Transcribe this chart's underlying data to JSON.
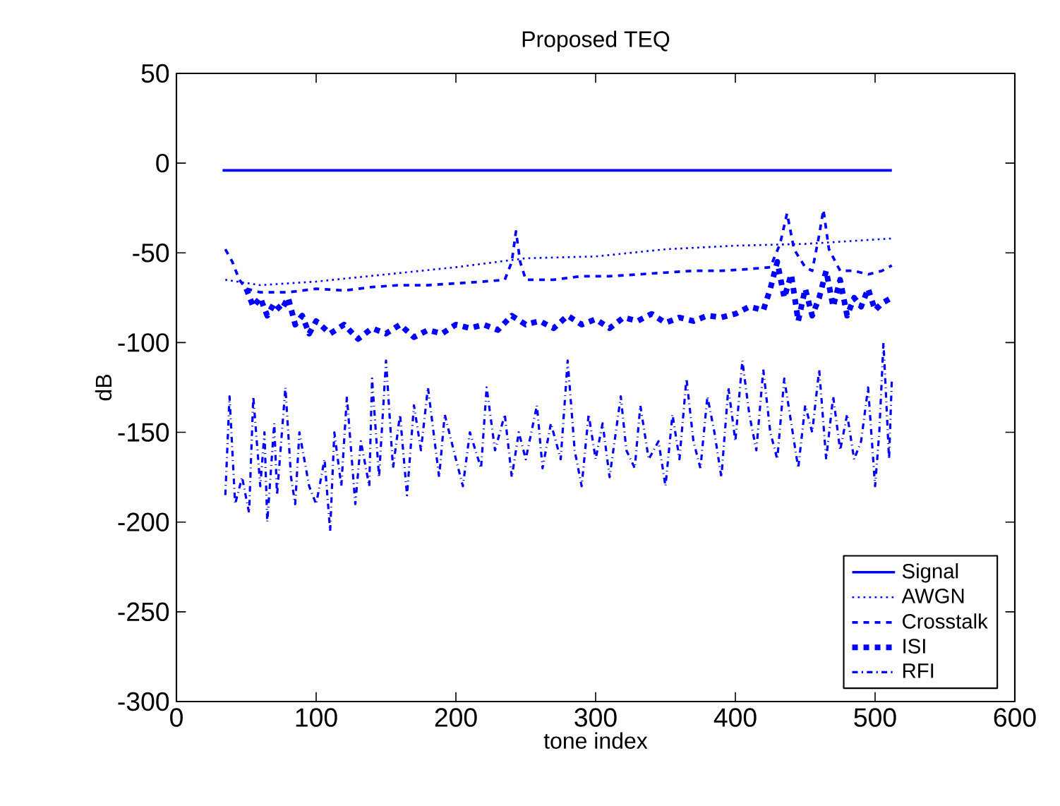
{
  "chart_data": {
    "type": "line",
    "title": "Proposed TEQ",
    "xlabel": "tone index",
    "ylabel": "dB",
    "xlim": [
      0,
      600
    ],
    "xticks": [
      0,
      100,
      200,
      300,
      400,
      500,
      600
    ],
    "ylim": [
      -300,
      50
    ],
    "yticks": [
      -300,
      -250,
      -200,
      -150,
      -100,
      -50,
      0,
      50
    ],
    "grid": false,
    "legend": "bottom right",
    "series": [
      {
        "name": "Signal",
        "color": "#0000ff",
        "line_style": "solid",
        "x": [
          33,
          512
        ],
        "values": [
          -4,
          -4
        ]
      },
      {
        "name": "AWGN",
        "color": "#0000ff",
        "line_style": "dotted",
        "x": [
          35,
          60,
          100,
          150,
          200,
          250,
          300,
          350,
          400,
          450,
          512
        ],
        "values": [
          -65,
          -68,
          -66,
          -62,
          -58,
          -53,
          -52,
          -48,
          -46,
          -45,
          -42
        ]
      },
      {
        "name": "Crosstalk",
        "color": "#0000ff",
        "line_style": "dashed",
        "x": [
          35,
          40,
          45,
          50,
          60,
          80,
          100,
          120,
          140,
          160,
          180,
          200,
          220,
          235,
          240,
          243,
          246,
          250,
          270,
          290,
          310,
          330,
          350,
          370,
          390,
          410,
          425,
          432,
          437,
          442,
          450,
          455,
          460,
          463,
          467,
          475,
          485,
          495,
          505,
          512
        ],
        "values": [
          -48,
          -55,
          -65,
          -70,
          -72,
          -72,
          -70,
          -71,
          -69,
          -68,
          -68,
          -67,
          -66,
          -65,
          -55,
          -38,
          -55,
          -65,
          -65,
          -63,
          -63,
          -62,
          -61,
          -60,
          -60,
          -59,
          -58,
          -45,
          -28,
          -48,
          -58,
          -60,
          -40,
          -26,
          -48,
          -60,
          -60,
          -62,
          -60,
          -57
        ]
      },
      {
        "name": "ISI",
        "color": "#0000ff",
        "line_style": "dashed",
        "x": [
          50,
          55,
          60,
          65,
          70,
          75,
          80,
          85,
          90,
          95,
          100,
          110,
          120,
          130,
          140,
          150,
          160,
          170,
          180,
          190,
          200,
          210,
          220,
          230,
          240,
          250,
          260,
          270,
          280,
          290,
          300,
          310,
          320,
          330,
          340,
          350,
          360,
          370,
          380,
          390,
          400,
          410,
          420,
          425,
          430,
          435,
          440,
          445,
          450,
          455,
          460,
          465,
          470,
          475,
          480,
          485,
          490,
          495,
          500,
          505,
          512
        ],
        "values": [
          -70,
          -80,
          -75,
          -85,
          -78,
          -82,
          -75,
          -90,
          -85,
          -95,
          -88,
          -95,
          -90,
          -98,
          -92,
          -95,
          -90,
          -97,
          -93,
          -95,
          -90,
          -92,
          -90,
          -93,
          -85,
          -90,
          -88,
          -92,
          -85,
          -90,
          -87,
          -92,
          -86,
          -88,
          -84,
          -89,
          -86,
          -88,
          -85,
          -86,
          -84,
          -80,
          -82,
          -70,
          -55,
          -75,
          -62,
          -88,
          -70,
          -85,
          -75,
          -60,
          -80,
          -65,
          -85,
          -75,
          -80,
          -70,
          -82,
          -78,
          -75
        ]
      },
      {
        "name": "RFI",
        "color": "#0000ff",
        "line_style": "dashdot",
        "x": [
          35,
          38,
          42,
          47,
          52,
          55,
          60,
          63,
          65,
          70,
          72,
          78,
          82,
          85,
          88,
          95,
          100,
          106,
          110,
          113,
          118,
          122,
          128,
          132,
          138,
          140,
          145,
          150,
          155,
          160,
          165,
          170,
          175,
          180,
          188,
          192,
          200,
          205,
          210,
          218,
          222,
          228,
          235,
          240,
          245,
          250,
          258,
          262,
          268,
          275,
          280,
          285,
          290,
          295,
          300,
          305,
          310,
          318,
          322,
          328,
          332,
          338,
          345,
          350,
          355,
          360,
          365,
          370,
          375,
          380,
          385,
          390,
          395,
          400,
          405,
          410,
          415,
          420,
          425,
          430,
          435,
          440,
          445,
          450,
          455,
          460,
          465,
          470,
          475,
          480,
          485,
          490,
          495,
          500,
          503,
          506,
          510,
          512
        ],
        "values": [
          -185,
          -130,
          -190,
          -175,
          -195,
          -130,
          -180,
          -150,
          -200,
          -145,
          -185,
          -125,
          -175,
          -190,
          -150,
          -180,
          -190,
          -165,
          -205,
          -150,
          -180,
          -130,
          -190,
          -155,
          -180,
          -120,
          -175,
          -110,
          -170,
          -140,
          -185,
          -135,
          -160,
          -125,
          -175,
          -140,
          -165,
          -180,
          -150,
          -170,
          -125,
          -160,
          -140,
          -175,
          -150,
          -165,
          -135,
          -170,
          -145,
          -165,
          -110,
          -160,
          -180,
          -140,
          -165,
          -145,
          -175,
          -130,
          -160,
          -170,
          -135,
          -165,
          -155,
          -180,
          -140,
          -165,
          -120,
          -155,
          -170,
          -130,
          -150,
          -175,
          -125,
          -155,
          -110,
          -140,
          -160,
          -115,
          -150,
          -165,
          -120,
          -145,
          -170,
          -135,
          -150,
          -115,
          -165,
          -130,
          -160,
          -140,
          -165,
          -155,
          -125,
          -180,
          -150,
          -100,
          -165,
          -120
        ]
      }
    ]
  }
}
